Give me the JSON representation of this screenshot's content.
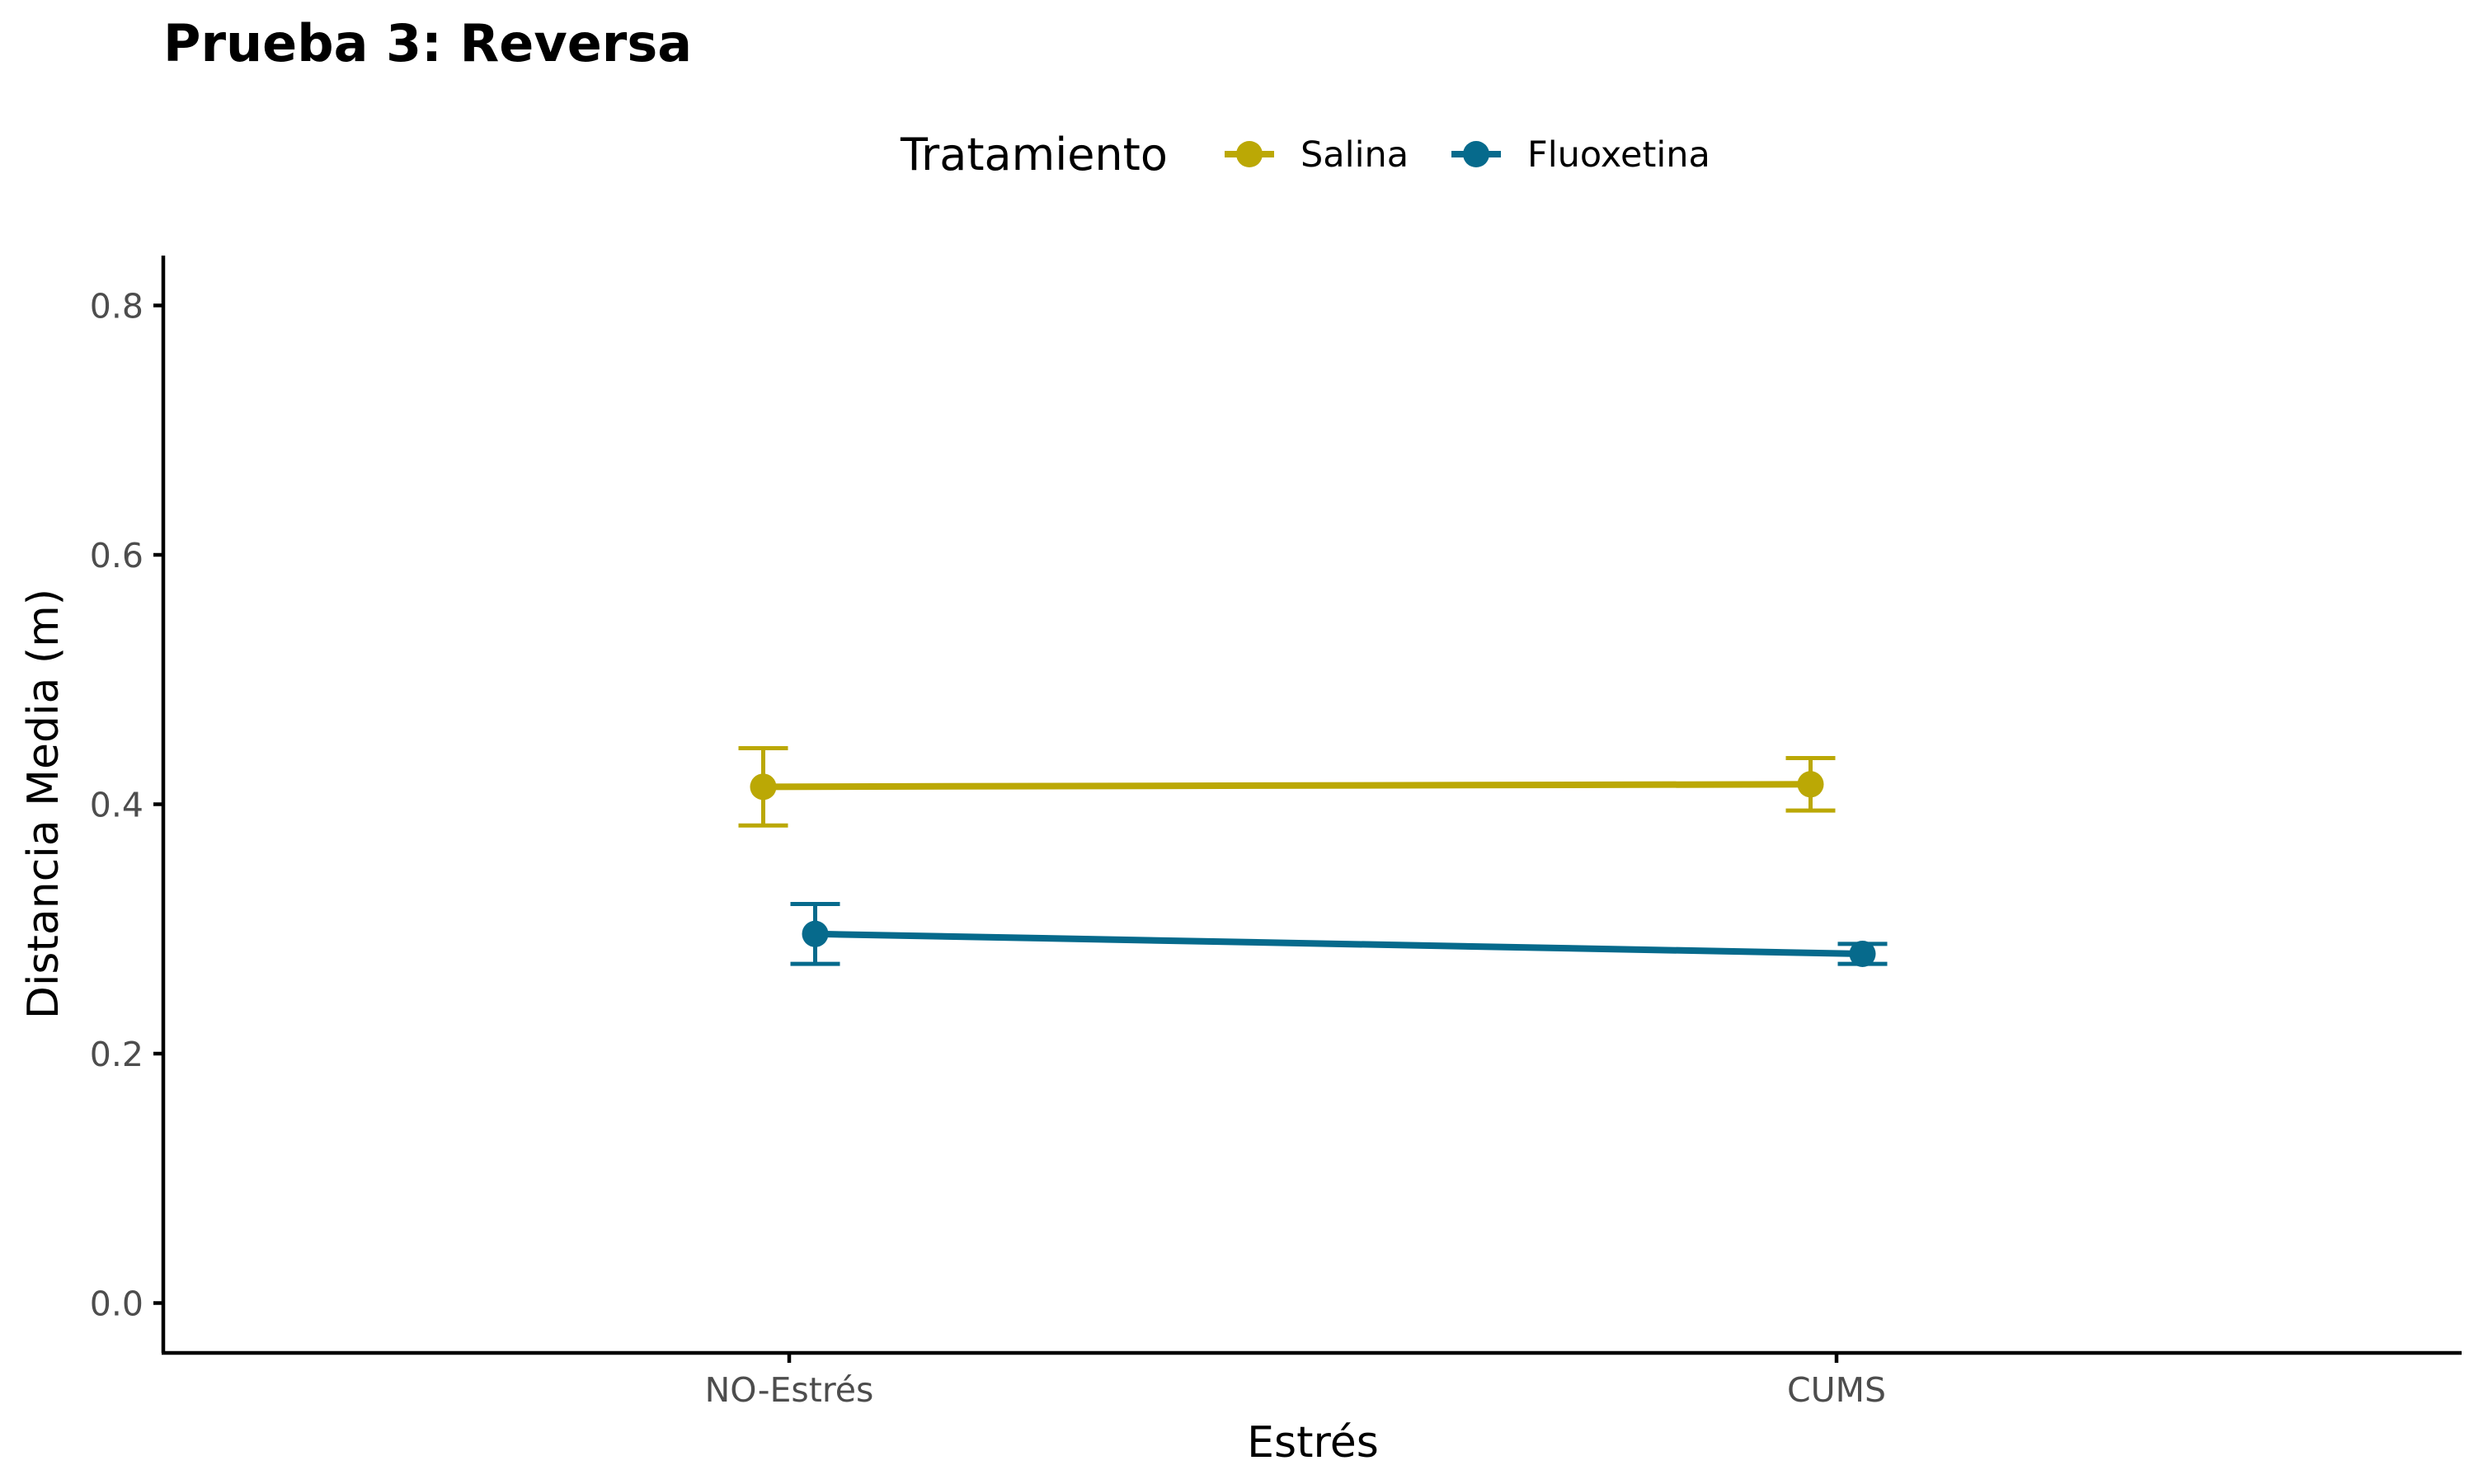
{
  "chart_data": {
    "type": "line",
    "title": "Prueba 3: Reversa",
    "xlabel": "Estrés",
    "ylabel": "Distancia Media (m)",
    "categories": [
      "NO-Estrés",
      "CUMS"
    ],
    "ylim": [
      -0.04,
      0.84
    ],
    "yticks": [
      0.0,
      0.2,
      0.4,
      0.6,
      0.8
    ],
    "ytick_labels": [
      "0.0",
      "0.2",
      "0.4",
      "0.6",
      "0.8"
    ],
    "grid": false,
    "legend": {
      "title": "Tratamiento",
      "position": "top"
    },
    "series": [
      {
        "name": "Salina",
        "color": "#BBA805",
        "values": [
          0.414,
          0.416
        ],
        "error_low": [
          0.383,
          0.395
        ],
        "error_high": [
          0.445,
          0.437
        ]
      },
      {
        "name": "Fluoxetina",
        "color": "#066A8C",
        "values": [
          0.296,
          0.28
        ],
        "error_low": [
          0.272,
          0.272
        ],
        "error_high": [
          0.32,
          0.288
        ]
      }
    ]
  }
}
